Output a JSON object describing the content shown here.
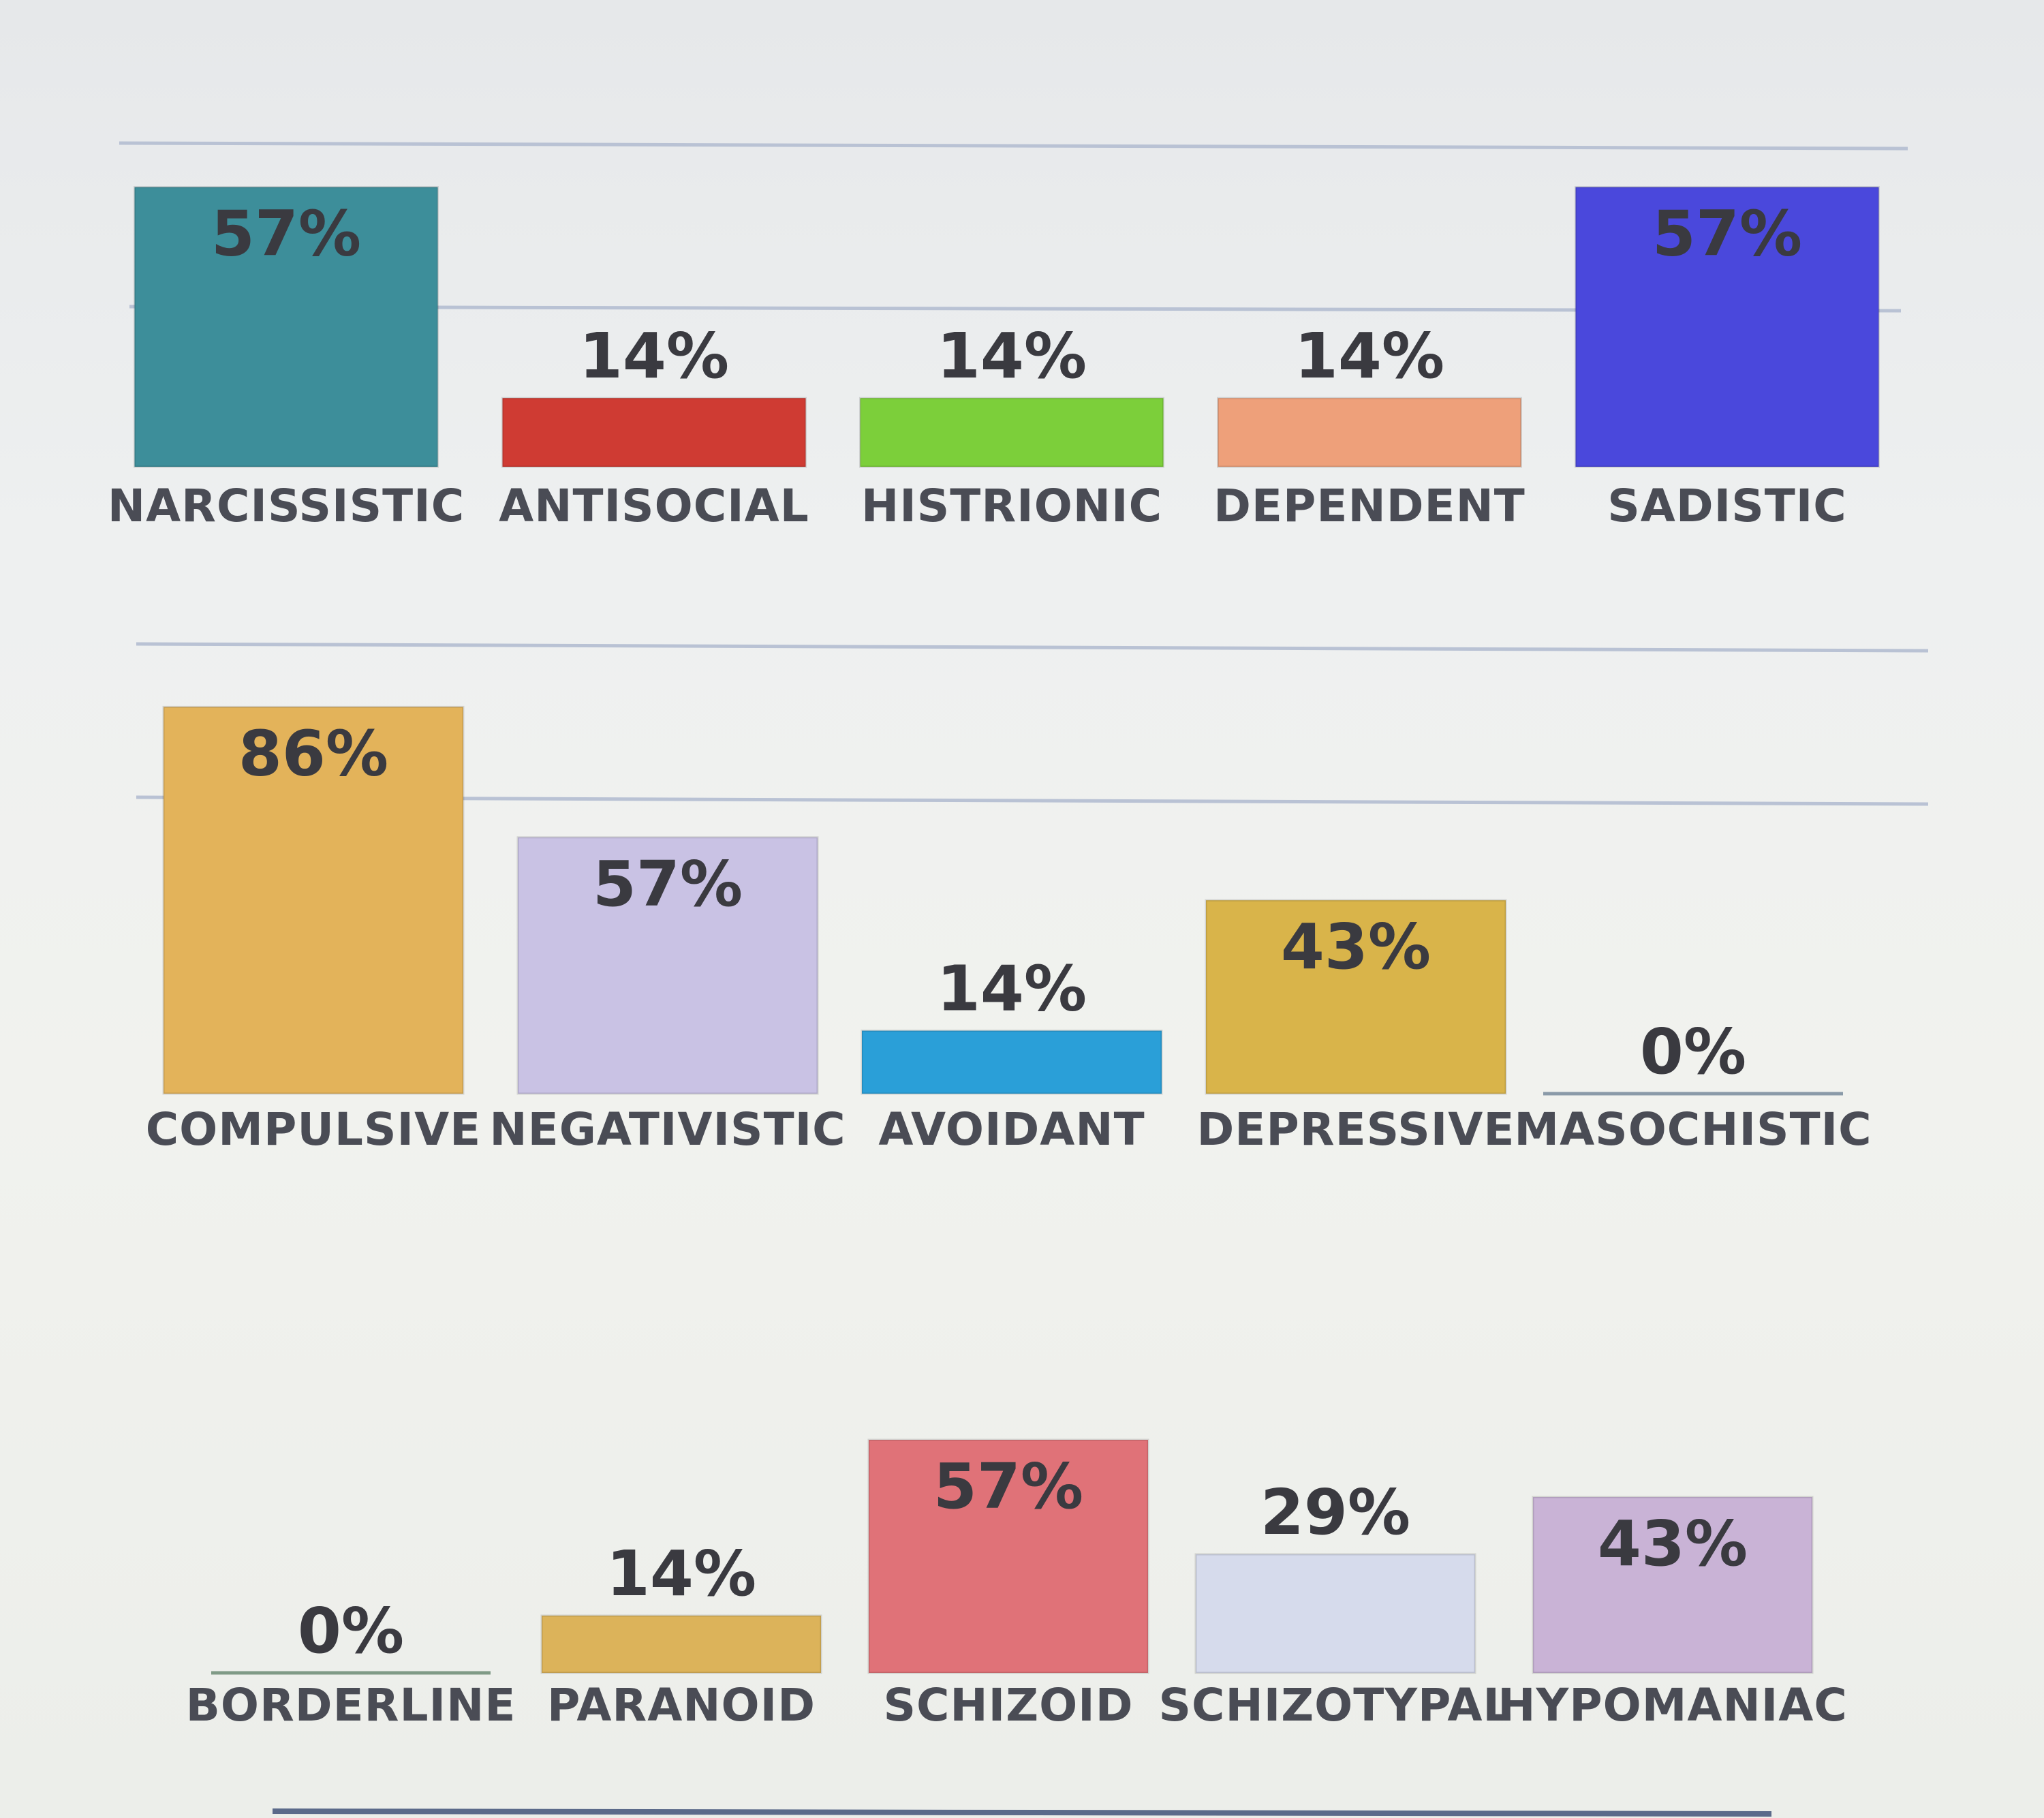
{
  "chart_data": [
    {
      "type": "bar",
      "categories": [
        "NARCISSISTIC",
        "ANTISOCIAL",
        "HISTRIONIC",
        "DEPENDENT",
        "SADISTIC"
      ],
      "values": [
        57,
        14,
        14,
        14,
        57
      ],
      "value_labels": [
        "57%",
        "14%",
        "14%",
        "14%",
        "57%"
      ],
      "colors": [
        "#3d8e9a",
        "#cf3b33",
        "#7ccf3a",
        "#eea07a",
        "#4a48dc"
      ],
      "ylim": [
        0,
        100
      ],
      "title": "",
      "xlabel": "",
      "ylabel": ""
    },
    {
      "type": "bar",
      "categories": [
        "COMPULSIVE",
        "NEGATIVISTIC",
        "AVOIDANT",
        "DEPRESSIVE",
        "MASOCHISTIC"
      ],
      "values": [
        86,
        57,
        14,
        43,
        0
      ],
      "value_labels": [
        "86%",
        "57%",
        "14%",
        "43%",
        "0%"
      ],
      "colors": [
        "#e3b35a",
        "#c9c2e4",
        "#2a9fd8",
        "#d9b44a",
        "#8a9aa8"
      ],
      "ylim": [
        0,
        100
      ],
      "title": "",
      "xlabel": "",
      "ylabel": ""
    },
    {
      "type": "bar",
      "categories": [
        "BORDERLINE",
        "PARANOID",
        "SCHIZOID",
        "SCHIZOTYPAL",
        "HYPOMANIAC"
      ],
      "values": [
        0,
        14,
        57,
        29,
        43
      ],
      "value_labels": [
        "0%",
        "14%",
        "57%",
        "29%",
        "43%"
      ],
      "colors": [
        "#7f9a86",
        "#dcb35a",
        "#e07278",
        "#d6dbec",
        "#c9b3d6"
      ],
      "ylim": [
        0,
        100
      ],
      "title": "",
      "xlabel": "",
      "ylabel": ""
    }
  ]
}
